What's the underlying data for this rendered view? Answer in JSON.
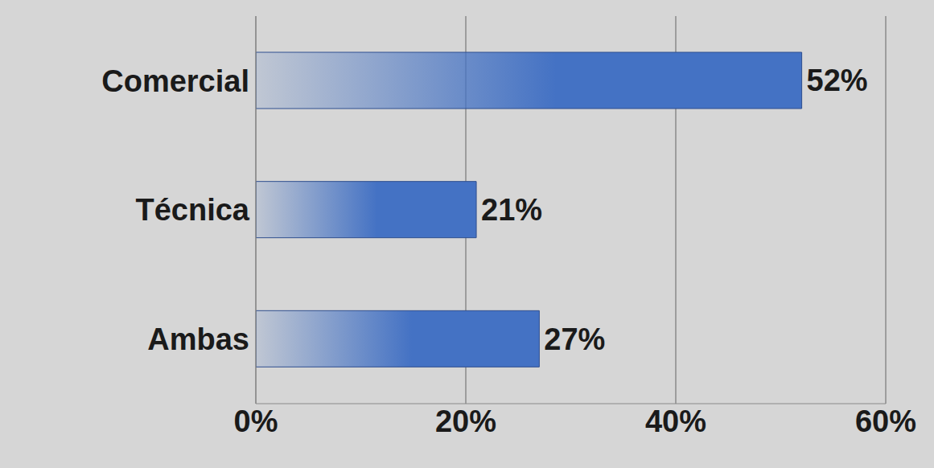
{
  "chart_data": {
    "type": "bar",
    "orientation": "horizontal",
    "categories": [
      "Comercial",
      "Técnica",
      "Ambas"
    ],
    "values": [
      52,
      21,
      27
    ],
    "value_labels": [
      "52%",
      "21%",
      "27%"
    ],
    "color": "#4472c4",
    "xlim": [
      0,
      60
    ],
    "xticks": [
      {
        "value": 0,
        "label": "0%"
      },
      {
        "value": 20,
        "label": "20%"
      },
      {
        "value": 40,
        "label": "40%"
      },
      {
        "value": 60,
        "label": "60%"
      }
    ],
    "grid": true,
    "data_labels": true
  }
}
